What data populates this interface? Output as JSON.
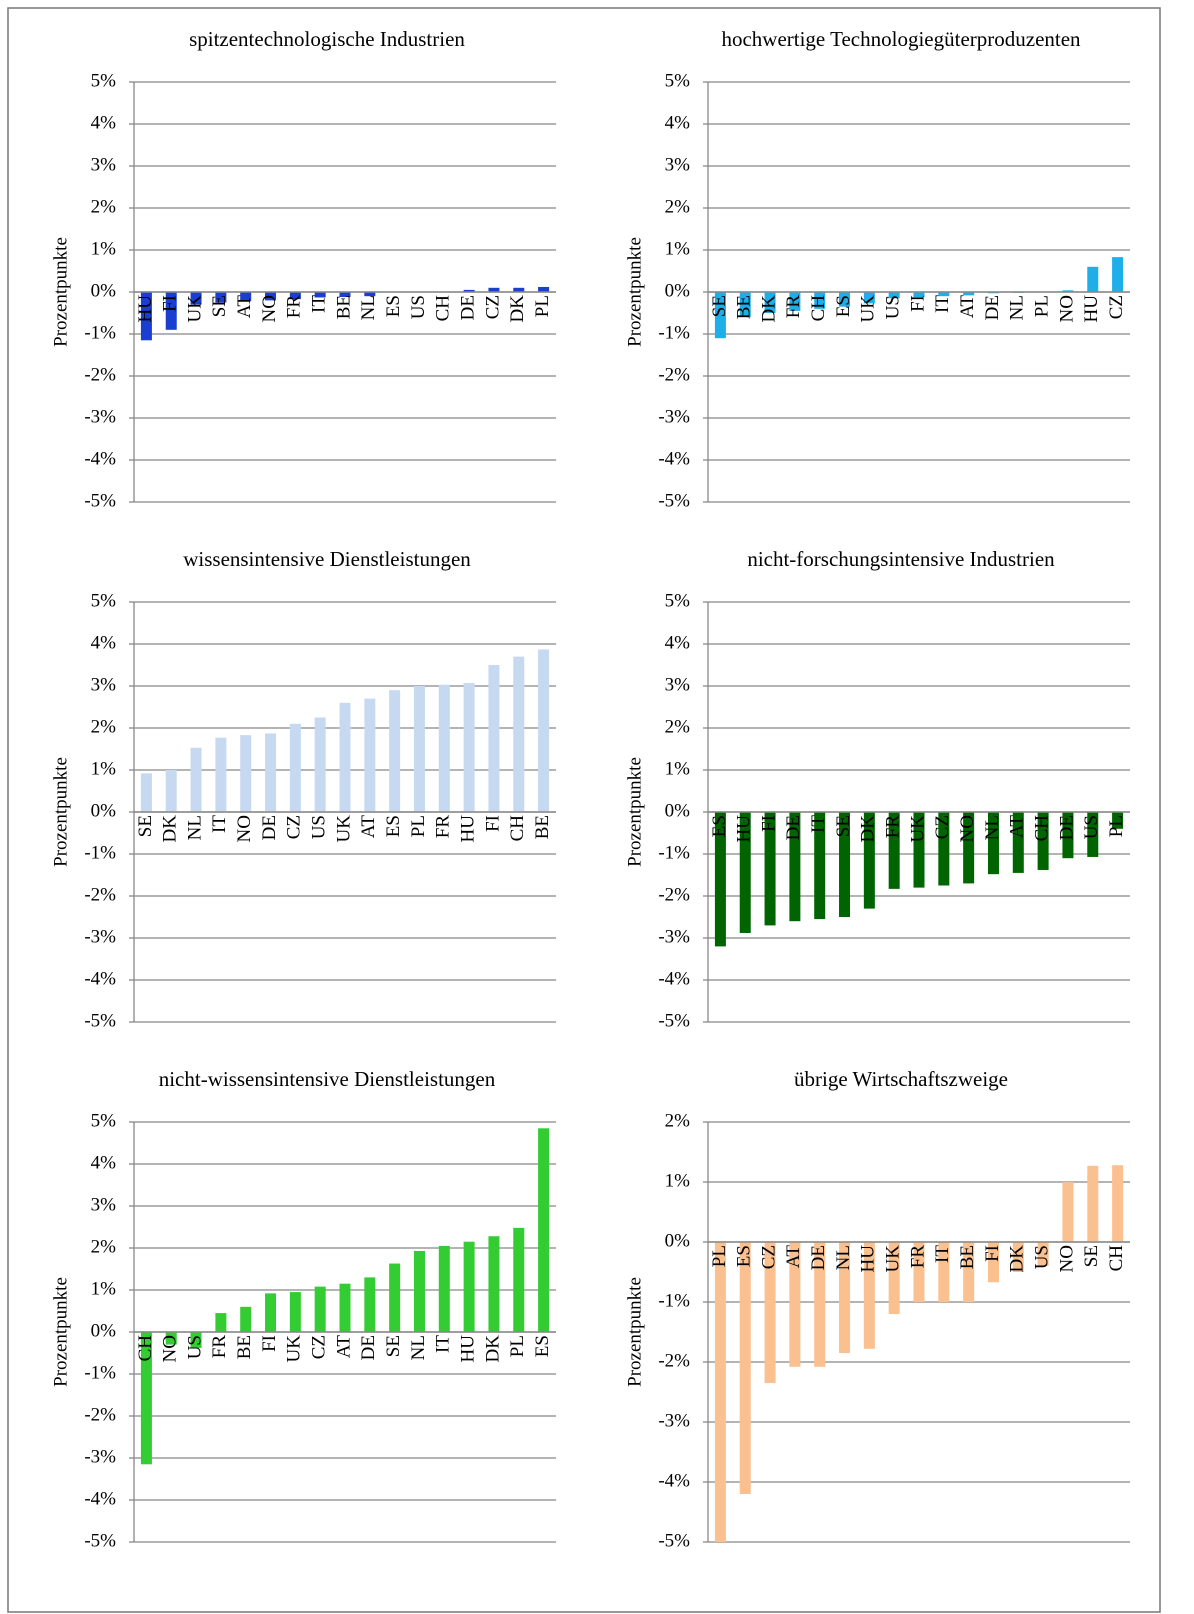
{
  "chart_data": [
    {
      "type": "bar",
      "title": "spitzentechnologische Industrien",
      "y_label": "Prozentpunkte",
      "categories": [
        "HU",
        "FI",
        "UK",
        "SE",
        "AT",
        "NO",
        "FR",
        "IT",
        "BE",
        "NL",
        "ES",
        "US",
        "CH",
        "DE",
        "CZ",
        "DK",
        "PL"
      ],
      "values": [
        -1.15,
        -0.9,
        -0.3,
        -0.25,
        -0.22,
        -0.2,
        -0.17,
        -0.13,
        -0.12,
        -0.1,
        0,
        0,
        0,
        0.05,
        0.1,
        0.1,
        0.12
      ],
      "color": "#1a3fd0",
      "ylim": [
        -5,
        5
      ],
      "yticks": [
        {
          "value": -5,
          "label": "-5%"
        },
        {
          "value": -4,
          "label": "-4%"
        },
        {
          "value": -3,
          "label": "-3%"
        },
        {
          "value": -2,
          "label": "-2%"
        },
        {
          "value": -1,
          "label": "-1%"
        },
        {
          "value": 0,
          "label": "0%"
        },
        {
          "value": 1,
          "label": "1%"
        },
        {
          "value": 2,
          "label": "2%"
        },
        {
          "value": 3,
          "label": "3%"
        },
        {
          "value": 4,
          "label": "4%"
        },
        {
          "value": 5,
          "label": "5%"
        }
      ],
      "grid": true
    },
    {
      "type": "bar",
      "title": "hochwertige Technologiegüterproduzenten",
      "y_label": "Prozentpunkte",
      "categories": [
        "SE",
        "BE",
        "DK",
        "FR",
        "CH",
        "ES",
        "UK",
        "US",
        "FI",
        "IT",
        "AT",
        "DE",
        "NL",
        "PL",
        "NO",
        "HU",
        "CZ"
      ],
      "values": [
        -1.1,
        -0.6,
        -0.5,
        -0.45,
        -0.4,
        -0.35,
        -0.27,
        -0.15,
        -0.12,
        -0.1,
        -0.08,
        -0.03,
        -0.02,
        0,
        0.04,
        0.6,
        0.83
      ],
      "color": "#1eaee8",
      "ylim": [
        -5,
        5
      ],
      "yticks": [
        {
          "value": -5,
          "label": "-5%"
        },
        {
          "value": -4,
          "label": "-4%"
        },
        {
          "value": -3,
          "label": "-3%"
        },
        {
          "value": -2,
          "label": "-2%"
        },
        {
          "value": -1,
          "label": "-1%"
        },
        {
          "value": 0,
          "label": "0%"
        },
        {
          "value": 1,
          "label": "1%"
        },
        {
          "value": 2,
          "label": "2%"
        },
        {
          "value": 3,
          "label": "3%"
        },
        {
          "value": 4,
          "label": "4%"
        },
        {
          "value": 5,
          "label": "5%"
        }
      ],
      "grid": true
    },
    {
      "type": "bar",
      "title": "wissensintensive Dienstleistungen",
      "y_label": "Prozentpunkte",
      "categories": [
        "SE",
        "DK",
        "NL",
        "IT",
        "NO",
        "DE",
        "CZ",
        "US",
        "UK",
        "AT",
        "ES",
        "PL",
        "FR",
        "HU",
        "FI",
        "CH",
        "BE"
      ],
      "values": [
        0.92,
        1.0,
        1.53,
        1.77,
        1.83,
        1.87,
        2.1,
        2.25,
        2.6,
        2.7,
        2.9,
        3.0,
        3.03,
        3.07,
        3.5,
        3.7,
        3.87
      ],
      "color": "#c6d9f0",
      "ylim": [
        -5,
        5
      ],
      "yticks": [
        {
          "value": -5,
          "label": "-5%"
        },
        {
          "value": -4,
          "label": "-4%"
        },
        {
          "value": -3,
          "label": "-3%"
        },
        {
          "value": -2,
          "label": "-2%"
        },
        {
          "value": -1,
          "label": "-1%"
        },
        {
          "value": 0,
          "label": "0%"
        },
        {
          "value": 1,
          "label": "1%"
        },
        {
          "value": 2,
          "label": "2%"
        },
        {
          "value": 3,
          "label": "3%"
        },
        {
          "value": 4,
          "label": "4%"
        },
        {
          "value": 5,
          "label": "5%"
        }
      ],
      "grid": true
    },
    {
      "type": "bar",
      "title": "nicht-forschungsintensive Industrien",
      "y_label": "Prozentpunkte",
      "categories": [
        "ES",
        "HU",
        "FI",
        "DE",
        "IT",
        "SE",
        "DK",
        "FR",
        "UK",
        "CZ",
        "NO",
        "NL",
        "AT",
        "CH",
        "DE",
        "US",
        "PL"
      ],
      "values": [
        -3.2,
        -2.88,
        -2.7,
        -2.6,
        -2.55,
        -2.5,
        -2.3,
        -1.83,
        -1.8,
        -1.75,
        -1.7,
        -1.48,
        -1.45,
        -1.38,
        -1.1,
        -1.07,
        -0.4
      ],
      "color": "#006400",
      "ylim": [
        -5,
        5
      ],
      "yticks": [
        {
          "value": -5,
          "label": "-5%"
        },
        {
          "value": -4,
          "label": "-4%"
        },
        {
          "value": -3,
          "label": "-3%"
        },
        {
          "value": -2,
          "label": "-2%"
        },
        {
          "value": -1,
          "label": "-1%"
        },
        {
          "value": 0,
          "label": "0%"
        },
        {
          "value": 1,
          "label": "1%"
        },
        {
          "value": 2,
          "label": "2%"
        },
        {
          "value": 3,
          "label": "3%"
        },
        {
          "value": 4,
          "label": "4%"
        },
        {
          "value": 5,
          "label": "5%"
        }
      ],
      "grid": true
    },
    {
      "type": "bar",
      "title": "nicht-wissensintensive Dienstleistungen",
      "y_label": "Prozentpunkte",
      "categories": [
        "CH",
        "NO",
        "US",
        "FR",
        "BE",
        "FI",
        "UK",
        "CZ",
        "AT",
        "DE",
        "SE",
        "NL",
        "IT",
        "HU",
        "DK",
        "PL",
        "ES"
      ],
      "values": [
        -3.15,
        -0.3,
        -0.38,
        0.45,
        0.6,
        0.92,
        0.95,
        1.08,
        1.15,
        1.3,
        1.63,
        1.93,
        2.05,
        2.15,
        2.28,
        2.48,
        4.85
      ],
      "color": "#33cc33",
      "ylim": [
        -5,
        5
      ],
      "yticks": [
        {
          "value": -5,
          "label": "-5%"
        },
        {
          "value": -4,
          "label": "-4%"
        },
        {
          "value": -3,
          "label": "-3%"
        },
        {
          "value": -2,
          "label": "-2%"
        },
        {
          "value": -1,
          "label": "-1%"
        },
        {
          "value": 0,
          "label": "0%"
        },
        {
          "value": 1,
          "label": "1%"
        },
        {
          "value": 2,
          "label": "2%"
        },
        {
          "value": 3,
          "label": "3%"
        },
        {
          "value": 4,
          "label": "4%"
        },
        {
          "value": 5,
          "label": "5%"
        }
      ],
      "grid": true
    },
    {
      "type": "bar",
      "title": "übrige Wirtschaftszweige",
      "y_label": "Prozentpunkte",
      "categories": [
        "PL",
        "ES",
        "CZ",
        "AT",
        "DE",
        "NL",
        "HU",
        "UK",
        "FR",
        "IT",
        "BE",
        "FI",
        "DK",
        "US",
        "NO",
        "SE",
        "CH"
      ],
      "values": [
        -5.0,
        -4.2,
        -2.35,
        -2.08,
        -2.08,
        -1.85,
        -1.78,
        -1.2,
        -1.0,
        -1.0,
        -1.0,
        -0.67,
        -0.5,
        -0.4,
        1.0,
        1.27,
        1.28
      ],
      "color": "#fac090",
      "ylim": [
        -5,
        2
      ],
      "yticks": [
        {
          "value": -5,
          "label": "-5%"
        },
        {
          "value": -4,
          "label": "-4%"
        },
        {
          "value": -3,
          "label": "-3%"
        },
        {
          "value": -2,
          "label": "-2%"
        },
        {
          "value": -1,
          "label": "-1%"
        },
        {
          "value": 0,
          "label": "0%"
        },
        {
          "value": 1,
          "label": "1%"
        },
        {
          "value": 2,
          "label": "2%"
        }
      ],
      "grid": true
    }
  ]
}
